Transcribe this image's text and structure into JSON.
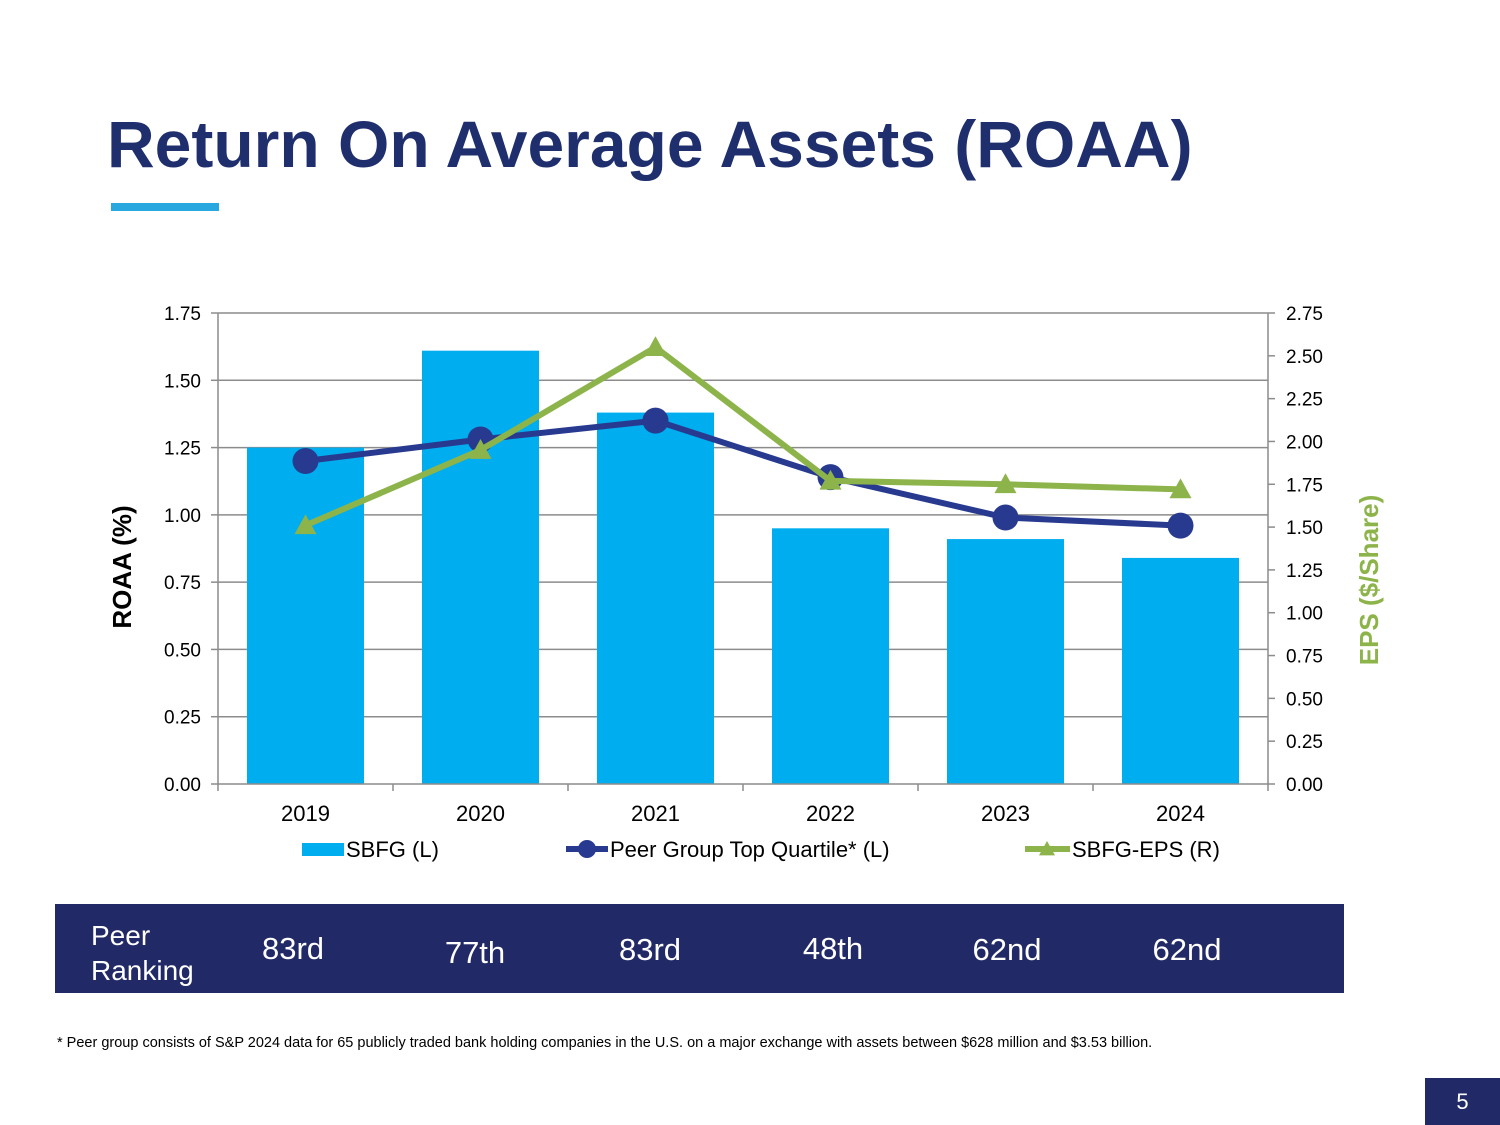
{
  "title": "Return On Average Assets (ROAA)",
  "chart_data": {
    "type": "bar",
    "categories": [
      "2019",
      "2020",
      "2021",
      "2022",
      "2023",
      "2024"
    ],
    "series": [
      {
        "name": "SBFG (L)",
        "kind": "bar",
        "axis": "left",
        "color": "#00adef",
        "values": [
          1.25,
          1.61,
          1.38,
          0.95,
          0.91,
          0.84
        ]
      },
      {
        "name": "Peer Group Top Quartile* (L)",
        "kind": "line-circle",
        "axis": "left",
        "color": "#283a8f",
        "values": [
          1.2,
          1.28,
          1.35,
          1.14,
          0.99,
          0.96
        ]
      },
      {
        "name": "SBFG-EPS (R)",
        "kind": "line-triangle",
        "axis": "right",
        "color": "#8db44a",
        "values": [
          1.51,
          1.95,
          2.55,
          1.77,
          1.75,
          1.72
        ]
      }
    ],
    "left_axis": {
      "label": "ROAA (%)",
      "min": 0,
      "max": 1.75,
      "ticks": [
        "0.00",
        "0.25",
        "0.50",
        "0.75",
        "1.00",
        "1.25",
        "1.50",
        "1.75"
      ]
    },
    "right_axis": {
      "label": "EPS ($/Share)",
      "label_color": "#8db44a",
      "min": 0,
      "max": 2.75,
      "ticks": [
        "0.00",
        "0.25",
        "0.50",
        "0.75",
        "1.00",
        "1.25",
        "1.50",
        "1.75",
        "2.00",
        "2.25",
        "2.50",
        "2.75"
      ]
    },
    "grid": true,
    "legend_position": "bottom"
  },
  "ranking": {
    "label": "Peer\nRanking",
    "values": [
      "83rd",
      "77th",
      "83rd",
      "48th",
      "62nd",
      "62nd"
    ]
  },
  "footnote": "* Peer group consists of S&P 2024 data for 65 publicly traded bank holding companies in the U.S. on a major exchange with assets between $628 million and $3.53 billion.",
  "page_number": "5"
}
